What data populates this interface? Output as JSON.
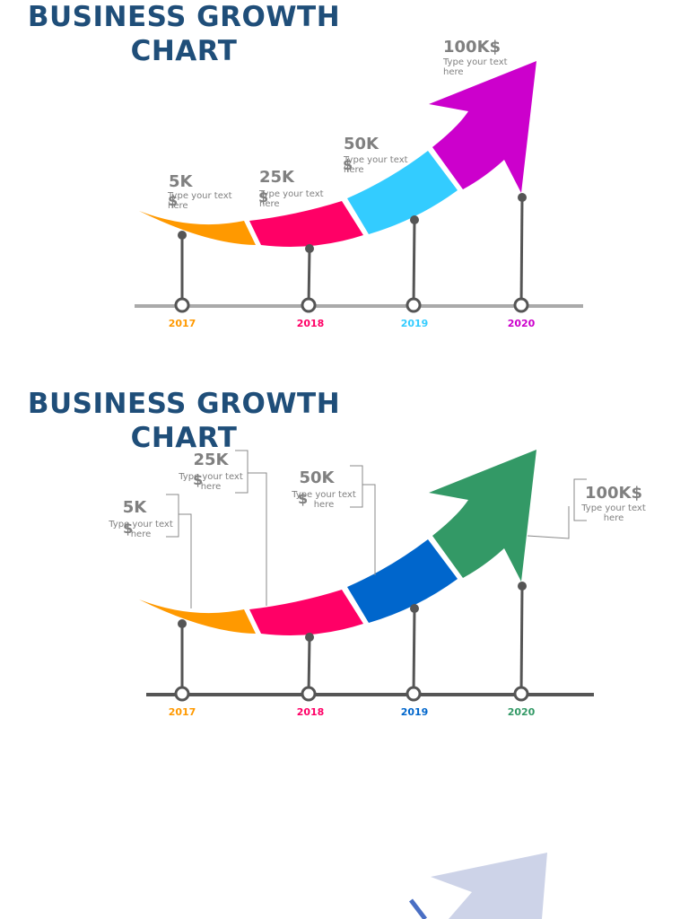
{
  "panels": [
    {
      "title": "BUSINESS GROWTH CHART",
      "items": [
        {
          "amount": "5K",
          "currency": "$",
          "note": "Type your text here",
          "year": "2017",
          "color": "#ff9900"
        },
        {
          "amount": "25K",
          "currency": "$",
          "note": "Type your text here",
          "year": "2018",
          "color": "#ff0066"
        },
        {
          "amount": "50K",
          "currency": "$",
          "note": "Type your text here",
          "year": "2019",
          "color": "#33ccff"
        },
        {
          "amount": "100K$",
          "note": "Type your text here",
          "year": "2020",
          "color": "#cc00cc"
        }
      ]
    },
    {
      "title": "BUSINESS GROWTH CHART",
      "items": [
        {
          "amount": "5K",
          "currency": "$",
          "note": "Type your text here",
          "year": "2017",
          "color": "#ff9900"
        },
        {
          "amount": "25K",
          "currency": "$",
          "note": "Type your text here",
          "year": "2018",
          "color": "#ff0066"
        },
        {
          "amount": "50K",
          "currency": "$",
          "note": "Type your text here",
          "year": "2019",
          "color": "#0066cc"
        },
        {
          "amount": "100K$",
          "note": "Type your text here",
          "year": "2020",
          "color": "#339966"
        }
      ]
    }
  ]
}
